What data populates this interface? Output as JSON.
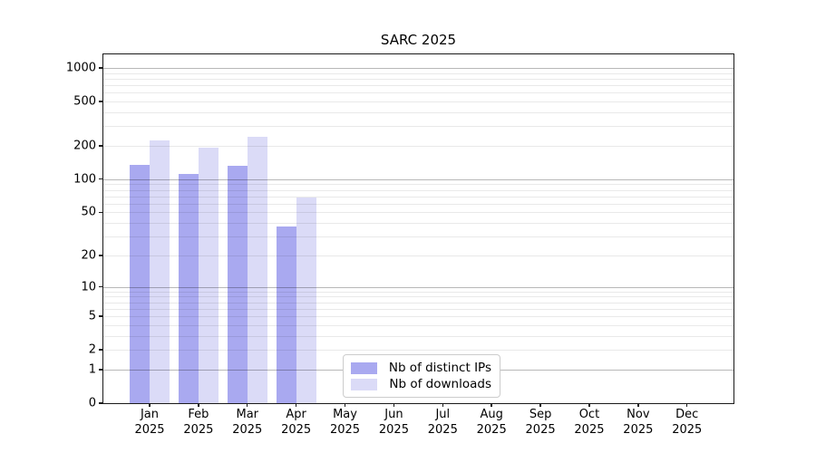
{
  "title": "SARC 2025",
  "legend": {
    "items": [
      {
        "label": "Nb of distinct IPs",
        "color": "#a9a9f0"
      },
      {
        "label": "Nb of downloads",
        "color": "#dbdbf7"
      }
    ]
  },
  "x_axis": {
    "months": [
      "Jan",
      "Feb",
      "Mar",
      "Apr",
      "May",
      "Jun",
      "Jul",
      "Aug",
      "Sep",
      "Oct",
      "Nov",
      "Dec"
    ],
    "year": "2025"
  },
  "chart_data": {
    "type": "bar",
    "title": "SARC 2025",
    "categories": [
      "Jan 2025",
      "Feb 2025",
      "Mar 2025",
      "Apr 2025",
      "May 2025",
      "Jun 2025",
      "Jul 2025",
      "Aug 2025",
      "Sep 2025",
      "Oct 2025",
      "Nov 2025",
      "Dec 2025"
    ],
    "series": [
      {
        "name": "Nb of distinct IPs",
        "color": "#a9a9f0",
        "values": [
          135,
          111,
          131,
          37,
          null,
          null,
          null,
          null,
          null,
          null,
          null,
          null
        ]
      },
      {
        "name": "Nb of downloads",
        "color": "#dbdbf7",
        "values": [
          224,
          193,
          242,
          68,
          null,
          null,
          null,
          null,
          null,
          null,
          null,
          null
        ]
      }
    ],
    "y_ticks": [
      0,
      1,
      2,
      5,
      10,
      20,
      50,
      100,
      200,
      500,
      1000
    ],
    "y_scale": "log-like: pixel position proportional to log10(value+1)",
    "ylim": [
      0,
      1320
    ],
    "grid": {
      "orientation": "horizontal",
      "major_at": [
        1,
        10,
        100,
        1000
      ],
      "minor_at_mantissas": [
        2,
        3,
        4,
        5,
        6,
        7,
        8,
        9
      ]
    },
    "legend_position": "inside bottom, left of center",
    "bars_present_for": [
      "Jan 2025",
      "Feb 2025",
      "Mar 2025",
      "Apr 2025"
    ]
  },
  "colors": {
    "bar_ips": "#a9a9f0",
    "bar_downloads": "#dbdbf7",
    "grid_major": "rgba(0,0,0,0.28)",
    "grid_minor": "rgba(0,0,0,0.085)",
    "spine": "#1a1a1a",
    "background": "#ffffff"
  }
}
